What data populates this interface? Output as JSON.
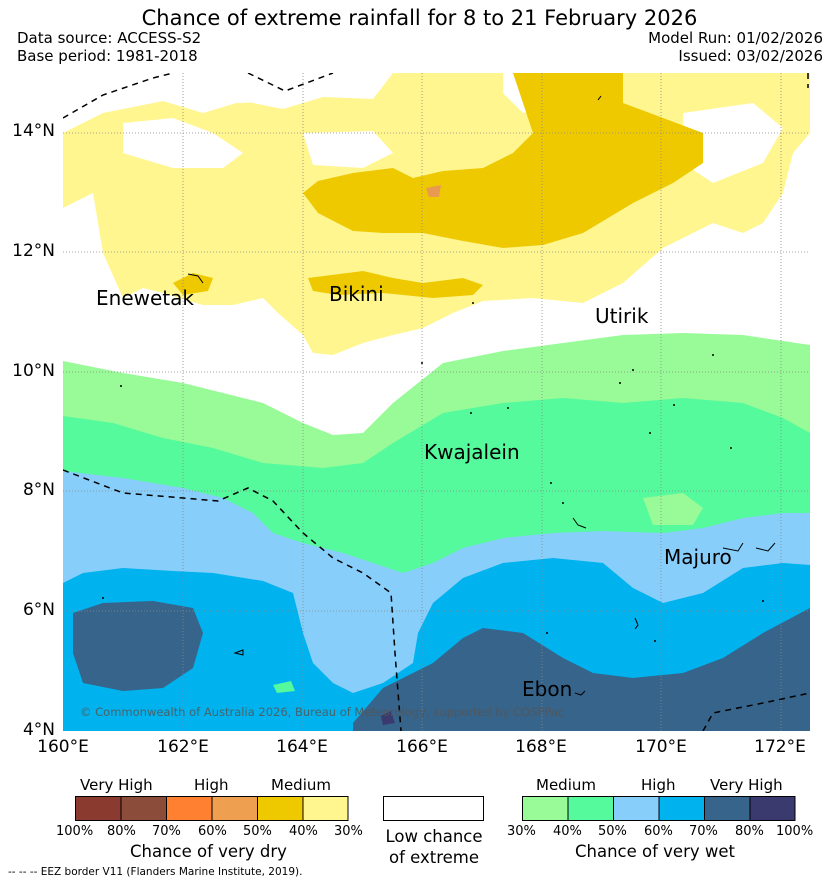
{
  "header": {
    "title": "Chance of extreme rainfall for 8 to 21 February 2026",
    "data_source": "Data source: ACCESS-S2",
    "base_period": "Base period: 1981-2018",
    "model_run": "Model Run: 01/02/2026",
    "issued": "Issued: 03/02/2026"
  },
  "map": {
    "lat_labels": [
      "14°N",
      "12°N",
      "10°N",
      "8°N",
      "6°N",
      "4°N"
    ],
    "lon_labels": [
      "160°E",
      "162°E",
      "164°E",
      "166°E",
      "168°E",
      "170°E",
      "172°E"
    ],
    "places": [
      "Enewetak",
      "Bikini",
      "Utirik",
      "Kwajalein",
      "Majuro",
      "Ebon"
    ],
    "copyright": "© Commonwealth of Australia 2026, Bureau of Meteorology, supported by COSPPac",
    "colors": {
      "dry_medium": "#eec900",
      "dry_light": "#fff68f",
      "dry_high": "#e89a50",
      "wet_30": "#98fb98",
      "wet_40": "#54fa9b",
      "wet_50": "#87cefa",
      "wet_60": "#00b2ee",
      "wet_70": "#36648b",
      "wet_80": "#3a3a6e"
    }
  },
  "legend": {
    "dry": {
      "categories": [
        "Very High",
        "High",
        "Medium"
      ],
      "colors": [
        "#8b3a30",
        "#8b4c39",
        "#ff8030",
        "#eea050",
        "#eec900",
        "#fff68f"
      ],
      "ticks": [
        "100%",
        "80%",
        "70%",
        "60%",
        "50%",
        "40%",
        "30%"
      ],
      "title": "Chance of very dry"
    },
    "neutral": {
      "line1": "Low chance",
      "line2": "of extreme"
    },
    "wet": {
      "categories": [
        "Medium",
        "High",
        "Very High"
      ],
      "colors": [
        "#98fb98",
        "#54fa9b",
        "#87cefa",
        "#00b2ee",
        "#36648b",
        "#3a3a6e"
      ],
      "ticks": [
        "30%",
        "40%",
        "50%",
        "60%",
        "70%",
        "80%",
        "100%"
      ],
      "title": "Chance of very wet"
    },
    "eez_note": "--  --  -- EEZ border V11 (Flanders Marine Institute, 2019)."
  }
}
